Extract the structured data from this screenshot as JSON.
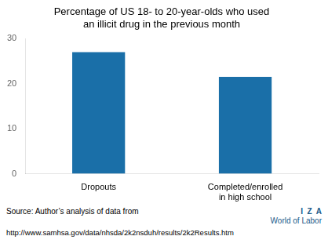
{
  "chart_data": {
    "type": "bar",
    "title": "Percentage of US 18- to 20-year-olds who used\nan illicit drug in the previous month",
    "categories": [
      "Dropouts",
      "Completed/enrolled\nin high school"
    ],
    "values": [
      27.0,
      21.5
    ],
    "color": "#1a6fa8",
    "ylim": [
      0,
      30
    ],
    "yticks": [
      0,
      10,
      20,
      30
    ],
    "grid": false,
    "annotations": [
      "Source: Author’s analysis of data from",
      "http://www.samhsa.gov/data/nhsda/2k2nsduh/results/2k2Results.htm",
      "I  Z  A",
      "World of Labor"
    ]
  }
}
